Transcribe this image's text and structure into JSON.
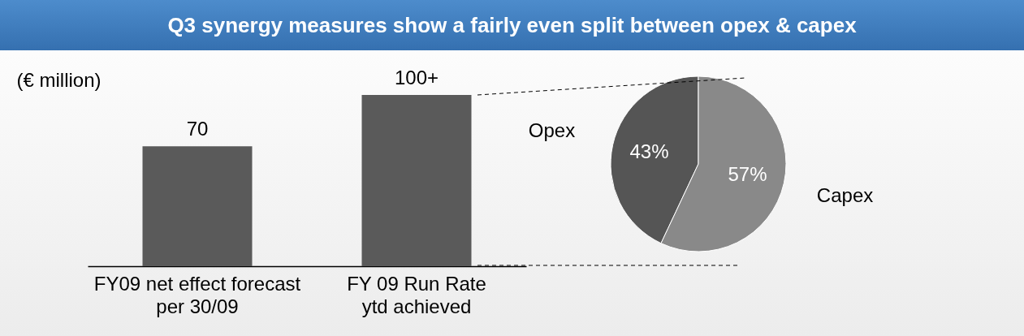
{
  "chart_data": [
    {
      "type": "bar",
      "title": "Q3 synergy measures show a fairly even split between opex & capex",
      "ylabel": "(€ million)",
      "categories": [
        "FY09 net effect forecast\nper 30/09",
        "FY 09 Run Rate\nytd achieved"
      ],
      "values": [
        70,
        100
      ],
      "value_labels": [
        "70",
        "100+"
      ],
      "color": "#5a5a5a"
    },
    {
      "type": "pie",
      "categories": [
        "Opex",
        "Capex"
      ],
      "values": [
        43,
        57
      ],
      "value_labels": [
        "43%",
        "57%"
      ],
      "colors": [
        "#555555",
        "#898989"
      ]
    }
  ]
}
